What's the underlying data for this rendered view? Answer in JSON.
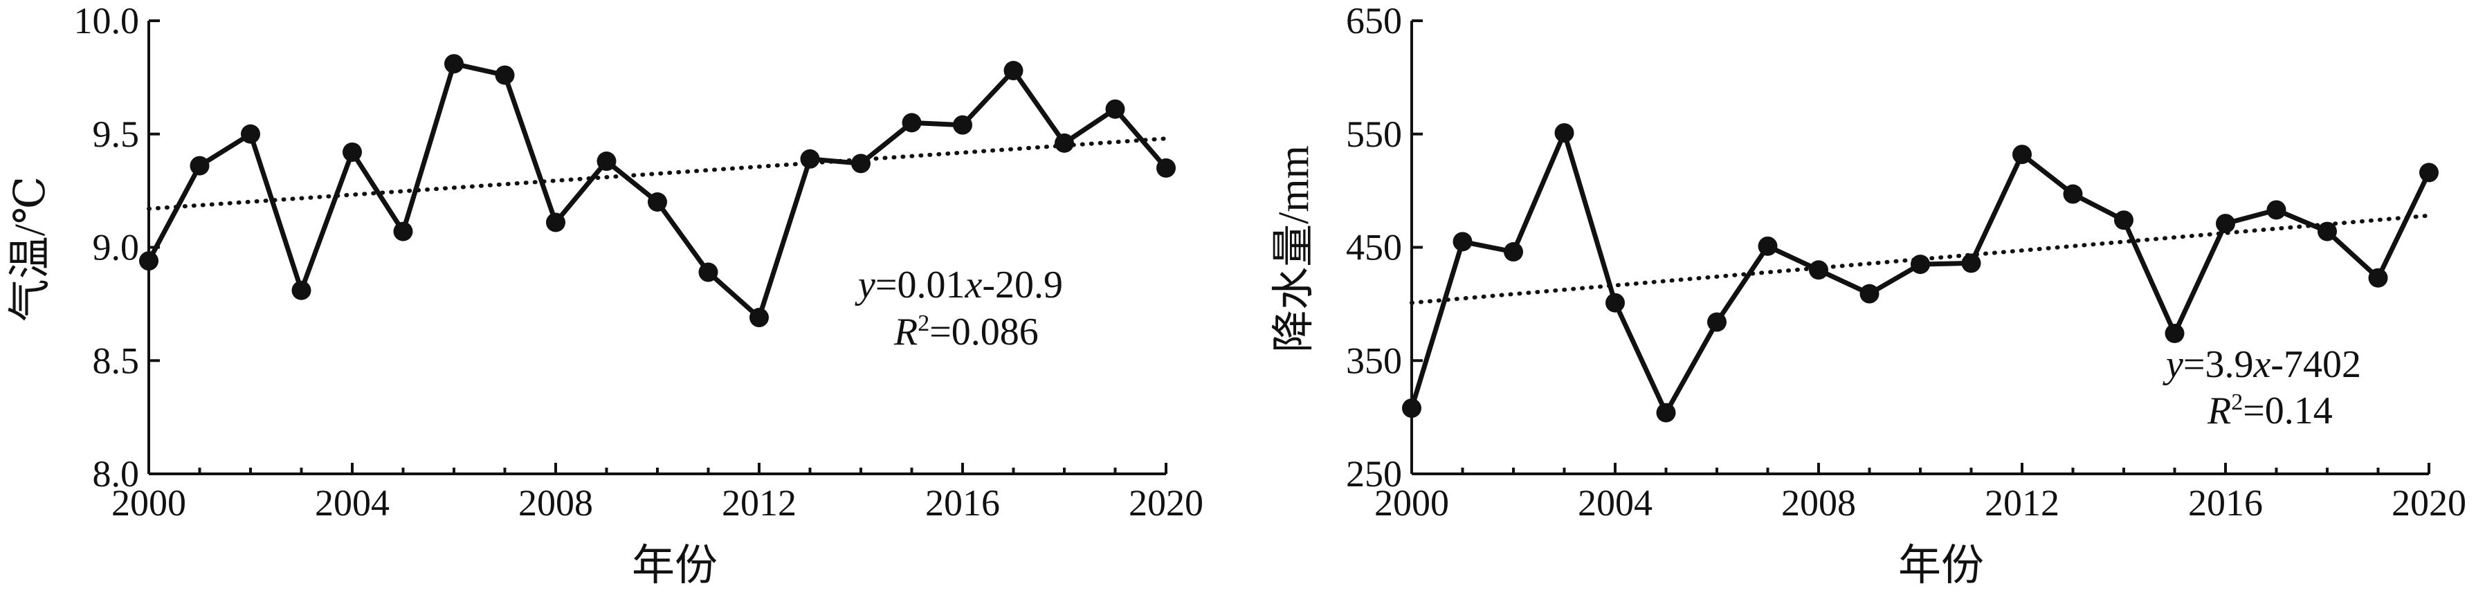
{
  "chart_data": [
    {
      "type": "line",
      "xlabel": "年份",
      "ylabel": "气温/℃",
      "xlim": [
        2000,
        2020
      ],
      "ylim": [
        8.0,
        10.0
      ],
      "xticks": [
        "2000",
        "2004",
        "2008",
        "2012",
        "2016",
        "2020"
      ],
      "yticks": [
        "8.0",
        "8.5",
        "9.0",
        "9.5",
        "10.0"
      ],
      "x": [
        2000,
        2001,
        2002,
        2003,
        2004,
        2005,
        2006,
        2007,
        2008,
        2009,
        2010,
        2011,
        2012,
        2013,
        2014,
        2015,
        2016,
        2017,
        2018,
        2019,
        2020
      ],
      "series": [
        {
          "values": [
            8.94,
            9.36,
            9.5,
            8.81,
            9.42,
            9.07,
            9.81,
            9.76,
            9.11,
            9.38,
            9.2,
            8.89,
            8.69,
            9.39,
            9.37,
            9.55,
            9.54,
            9.78,
            9.46,
            9.61,
            9.35
          ]
        }
      ],
      "trendline": {
        "start": [
          2000,
          9.17
        ],
        "end": [
          2020,
          9.48
        ]
      },
      "equation": {
        "y_var": "y",
        "eq_mid": "=0.01",
        "x_var": "x",
        "eq_tail": "-20.9",
        "r_var": "R",
        "r_sup": "2",
        "r_tail": "=0.086"
      },
      "grid": false,
      "legend": "none"
    },
    {
      "type": "line",
      "xlabel": "年份",
      "ylabel": "降水量/mm",
      "xlim": [
        2000,
        2020
      ],
      "ylim": [
        250,
        650
      ],
      "xticks": [
        "2000",
        "2004",
        "2008",
        "2012",
        "2016",
        "2020"
      ],
      "yticks": [
        "250",
        "350",
        "450",
        "550",
        "650"
      ],
      "x": [
        2000,
        2001,
        2002,
        2003,
        2004,
        2005,
        2006,
        2007,
        2008,
        2009,
        2010,
        2011,
        2012,
        2013,
        2014,
        2015,
        2016,
        2017,
        2018,
        2019,
        2020
      ],
      "series": [
        {
          "values": [
            308,
            455,
            446,
            551,
            401,
            304,
            384,
            451,
            430,
            409,
            435,
            436,
            532,
            497,
            474,
            374,
            471,
            483,
            464,
            423,
            516
          ]
        }
      ],
      "trendline": {
        "start": [
          2000,
          401
        ],
        "end": [
          2020,
          478
        ]
      },
      "equation": {
        "y_var": "y",
        "eq_mid": "=3.9",
        "x_var": "x",
        "eq_tail": "-7402",
        "r_var": "R",
        "r_sup": "2",
        "r_tail": "=0.14"
      },
      "grid": false,
      "legend": "none"
    }
  ]
}
